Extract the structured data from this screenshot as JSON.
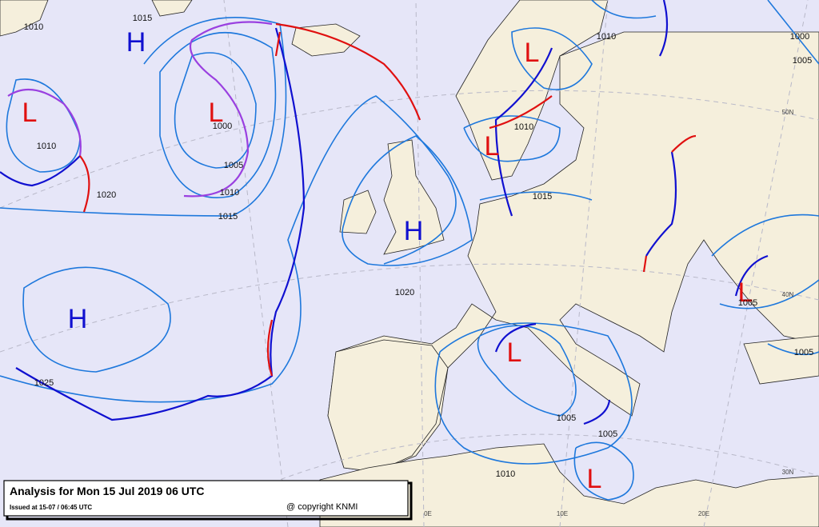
{
  "map": {
    "title": "Analysis for Mon 15 Jul 2019 06 UTC",
    "issued": "Issued at 15-07 / 06:45 UTC",
    "copyright": "@ copyright KNMI",
    "highs": [
      "H",
      "H",
      "H"
    ],
    "lows": [
      "L",
      "L",
      "L",
      "L",
      "L",
      "L",
      "L"
    ],
    "isobar_labels": [
      "1015",
      "1010",
      "1010",
      "1000",
      "1005",
      "1010",
      "1015",
      "1020",
      "1020",
      "1025",
      "1010",
      "1000",
      "1005",
      "1010",
      "1015",
      "1005",
      "1005",
      "1005",
      "1010",
      "1005"
    ],
    "grid_labels": [
      "50N",
      "40N",
      "30N",
      "0E",
      "10E",
      "20E"
    ]
  }
}
